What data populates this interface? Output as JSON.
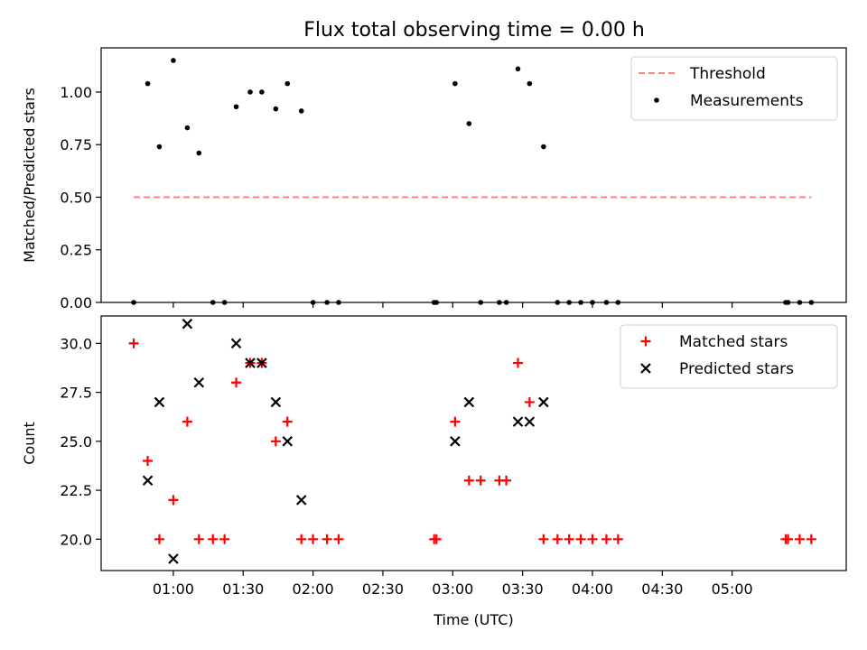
{
  "title": "Flux total observing time = 0.00 h",
  "chart_data": [
    {
      "type": "scatter",
      "ylabel": "Matched/Predicted stars",
      "ylim": [
        0.0,
        1.21
      ],
      "yticks": [
        0.0,
        0.25,
        0.5,
        0.75,
        1.0
      ],
      "ytick_labels": [
        "0.00",
        "0.25",
        "0.50",
        "0.75",
        "1.00"
      ],
      "xlim": [
        "00:29",
        "05:49"
      ],
      "legend_placement": "upper right",
      "threshold": {
        "name": "Threshold",
        "value": 0.5,
        "x_range": [
          "00:43",
          "05:34"
        ],
        "color": "#ff7f7f",
        "style": "dashed"
      },
      "series": [
        {
          "name": "Measurements",
          "color": "#000000",
          "marker": "dot",
          "points": [
            [
              "00:43",
              0.0
            ],
            [
              "00:49",
              1.04
            ],
            [
              "00:54",
              0.74
            ],
            [
              "01:00",
              1.15
            ],
            [
              "01:06",
              0.83
            ],
            [
              "01:11",
              0.71
            ],
            [
              "01:17",
              0.0
            ],
            [
              "01:22",
              0.0
            ],
            [
              "01:27",
              0.93
            ],
            [
              "01:33",
              1.0
            ],
            [
              "01:38",
              1.0
            ],
            [
              "01:44",
              0.92
            ],
            [
              "01:49",
              1.04
            ],
            [
              "01:55",
              0.91
            ],
            [
              "02:00",
              0.0
            ],
            [
              "02:06",
              0.0
            ],
            [
              "02:11",
              0.0
            ],
            [
              "02:52",
              0.0
            ],
            [
              "02:53",
              0.0
            ],
            [
              "03:01",
              1.04
            ],
            [
              "03:07",
              0.85
            ],
            [
              "03:12",
              0.0
            ],
            [
              "03:20",
              0.0
            ],
            [
              "03:23",
              0.0
            ],
            [
              "03:28",
              1.11
            ],
            [
              "03:33",
              1.04
            ],
            [
              "03:39",
              0.74
            ],
            [
              "03:45",
              0.0
            ],
            [
              "03:50",
              0.0
            ],
            [
              "03:55",
              0.0
            ],
            [
              "04:00",
              0.0
            ],
            [
              "04:06",
              0.0
            ],
            [
              "04:11",
              0.0
            ],
            [
              "05:23",
              0.0
            ],
            [
              "05:24",
              0.0
            ],
            [
              "05:29",
              0.0
            ],
            [
              "05:34",
              0.0
            ]
          ]
        }
      ]
    },
    {
      "type": "scatter",
      "xlabel": "Time (UTC)",
      "ylabel": "Count",
      "ylim": [
        18.4,
        31.4
      ],
      "yticks": [
        20.0,
        22.5,
        25.0,
        27.5,
        30.0
      ],
      "ytick_labels": [
        "20.0",
        "22.5",
        "25.0",
        "27.5",
        "30.0"
      ],
      "xlim": [
        "00:29",
        "05:49"
      ],
      "xticks": [
        "01:00",
        "01:30",
        "02:00",
        "02:30",
        "03:00",
        "03:30",
        "04:00",
        "04:30",
        "05:00"
      ],
      "xtick_labels": [
        "01:00",
        "01:30",
        "02:00",
        "02:30",
        "03:00",
        "03:30",
        "04:00",
        "04:30",
        "05:00"
      ],
      "legend_placement": "upper right",
      "series": [
        {
          "name": "Matched stars",
          "color": "#ff0000",
          "marker": "plus",
          "points": [
            [
              "00:43",
              30
            ],
            [
              "00:49",
              24
            ],
            [
              "00:54",
              20
            ],
            [
              "01:00",
              22
            ],
            [
              "01:06",
              26
            ],
            [
              "01:11",
              20
            ],
            [
              "01:17",
              20
            ],
            [
              "01:22",
              20
            ],
            [
              "01:27",
              28
            ],
            [
              "01:33",
              29
            ],
            [
              "01:38",
              29
            ],
            [
              "01:44",
              25
            ],
            [
              "01:49",
              26
            ],
            [
              "01:55",
              20
            ],
            [
              "02:00",
              20
            ],
            [
              "02:06",
              20
            ],
            [
              "02:11",
              20
            ],
            [
              "02:52",
              20
            ],
            [
              "02:53",
              20
            ],
            [
              "03:01",
              26
            ],
            [
              "03:07",
              23
            ],
            [
              "03:12",
              23
            ],
            [
              "03:20",
              23
            ],
            [
              "03:23",
              23
            ],
            [
              "03:28",
              29
            ],
            [
              "03:33",
              27
            ],
            [
              "03:39",
              20
            ],
            [
              "03:45",
              20
            ],
            [
              "03:50",
              20
            ],
            [
              "03:55",
              20
            ],
            [
              "04:00",
              20
            ],
            [
              "04:06",
              20
            ],
            [
              "04:11",
              20
            ],
            [
              "05:23",
              20
            ],
            [
              "05:24",
              20
            ],
            [
              "05:29",
              20
            ],
            [
              "05:34",
              20
            ]
          ]
        },
        {
          "name": "Predicted stars",
          "color": "#000000",
          "marker": "x",
          "points": [
            [
              "00:49",
              23
            ],
            [
              "00:54",
              27
            ],
            [
              "01:00",
              19
            ],
            [
              "01:06",
              31
            ],
            [
              "01:11",
              28
            ],
            [
              "01:27",
              30
            ],
            [
              "01:33",
              29
            ],
            [
              "01:38",
              29
            ],
            [
              "01:44",
              27
            ],
            [
              "01:49",
              25
            ],
            [
              "01:55",
              22
            ],
            [
              "03:01",
              25
            ],
            [
              "03:07",
              27
            ],
            [
              "03:28",
              26
            ],
            [
              "03:33",
              26
            ],
            [
              "03:39",
              27
            ]
          ]
        }
      ]
    }
  ]
}
